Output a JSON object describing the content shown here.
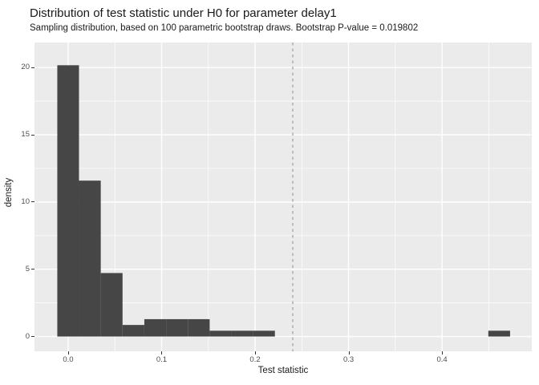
{
  "chart_data": {
    "type": "bar",
    "subtype": "histogram",
    "title": "Distribution of test statistic under H0 for parameter delay1",
    "subtitle": "Sampling distribution, based on 100 parametric bootstrap draws. Bootstrap P-value = 0.019802",
    "xlabel": "Test statistic",
    "ylabel": "density",
    "xlim": [
      -0.036,
      0.496
    ],
    "ylim": [
      -1.1,
      21.86
    ],
    "x_ticks": {
      "values": [
        0.0,
        0.1,
        0.2,
        0.3,
        0.4
      ],
      "labels": [
        "0.0",
        "0.1",
        "0.2",
        "0.3",
        "0.4"
      ]
    },
    "y_ticks": {
      "values": [
        0,
        5,
        10,
        15,
        20
      ],
      "labels": [
        "0",
        "5",
        "10",
        "15",
        "20"
      ]
    },
    "x_minor": [
      0.05,
      0.15,
      0.25,
      0.35,
      0.45
    ],
    "y_minor": [
      2.5,
      7.5,
      12.5,
      17.5
    ],
    "grid": "major and minor white gridlines on gray panel",
    "legend_position": "none",
    "bins": [
      {
        "x0": -0.0116,
        "x1": 0.0116,
        "density": 20.17
      },
      {
        "x0": 0.0116,
        "x1": 0.0349,
        "density": 11.59
      },
      {
        "x0": 0.0349,
        "x1": 0.0582,
        "density": 4.72
      },
      {
        "x0": 0.0582,
        "x1": 0.0815,
        "density": 0.86
      },
      {
        "x0": 0.0815,
        "x1": 0.1048,
        "density": 1.29
      },
      {
        "x0": 0.1048,
        "x1": 0.1281,
        "density": 1.29
      },
      {
        "x0": 0.1281,
        "x1": 0.1514,
        "density": 1.29
      },
      {
        "x0": 0.1514,
        "x1": 0.1746,
        "density": 0.43
      },
      {
        "x0": 0.1746,
        "x1": 0.1979,
        "density": 0.43
      },
      {
        "x0": 0.1979,
        "x1": 0.2212,
        "density": 0.43
      },
      {
        "x0": 0.4495,
        "x1": 0.4728,
        "density": 0.43
      }
    ],
    "vline": {
      "x": 0.2403,
      "style": "dashed",
      "color": "#A8A8A8"
    },
    "colors": {
      "bar": "#464646",
      "panel_background": "#EBEBEB",
      "gridline": "#FFFFFF",
      "tick_text": "#4D4D4D",
      "title_text": "#1A1A1A",
      "tick_mark": "#333333",
      "page_background": "#FFFFFF"
    }
  }
}
